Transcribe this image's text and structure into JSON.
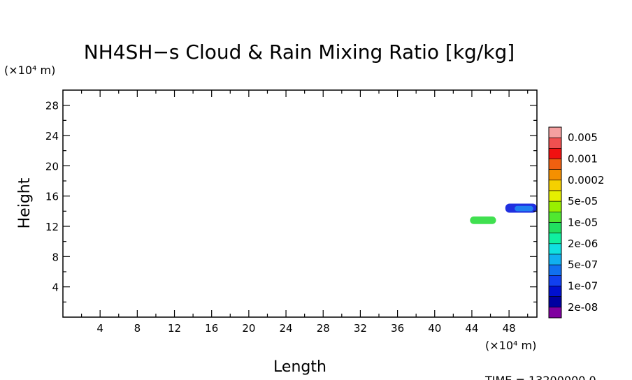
{
  "chart_data": {
    "type": "heatmap",
    "title": "NH4SH−s Cloud & Rain Mixing Ratio [kg/kg]",
    "xlabel": "Length",
    "ylabel": "Height",
    "x_unit": "(×10⁴ m)",
    "y_unit": "(×10⁴ m)",
    "xlim": [
      0,
      51
    ],
    "ylim": [
      0,
      30
    ],
    "x_ticks": [
      4,
      8,
      12,
      16,
      20,
      24,
      28,
      32,
      36,
      40,
      44,
      48
    ],
    "y_ticks": [
      4,
      8,
      12,
      16,
      20,
      24,
      28
    ],
    "time_label": "TIME = 13200000.0",
    "colorbar": {
      "labels": [
        "0.005",
        "0.001",
        "0.0002",
        "5e-05",
        "1e-05",
        "2e-06",
        "5e-07",
        "1e-07",
        "2e-08"
      ],
      "colors": [
        "#f5a0a0",
        "#f05050",
        "#f01010",
        "#f06010",
        "#f59000",
        "#f5d000",
        "#e6f000",
        "#98f000",
        "#50e830",
        "#20e060",
        "#10f0a0",
        "#10e0e0",
        "#10b0f0",
        "#1070f0",
        "#1040f0",
        "#0010d0",
        "#0000a0",
        "#8000a0"
      ]
    },
    "features": [
      {
        "color": "#40e050",
        "x": [
          43.8,
          46.6
        ],
        "y": [
          12.3,
          13.3
        ]
      },
      {
        "color": "#2030e0",
        "x": [
          47.6,
          51.0
        ],
        "y": [
          13.8,
          15.0
        ]
      },
      {
        "color": "#2080f0",
        "x": [
          48.6,
          50.6
        ],
        "y": [
          14.0,
          14.7
        ]
      }
    ]
  }
}
